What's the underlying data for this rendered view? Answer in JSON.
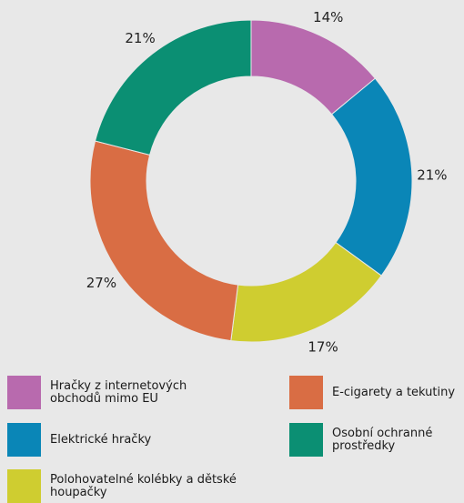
{
  "chart_data": {
    "type": "pie",
    "subtype": "donut",
    "slices": [
      {
        "label": "Hračky z internetových obchodů mimo EU",
        "value": 14,
        "value_label": "14%",
        "color": "#b86aae"
      },
      {
        "label": "Elektrické hračky",
        "value": 21,
        "value_label": "21%",
        "color": "#0a86b7"
      },
      {
        "label": "Polohovatelné kolébky a dětské houpačky",
        "value": 17,
        "value_label": "17%",
        "color": "#cfcd30"
      },
      {
        "label": "E-cigarety a tekutiny",
        "value": 27,
        "value_label": "27%",
        "color": "#d96d44"
      },
      {
        "label": "Osobní ochranné prostředky",
        "value": 21,
        "value_label": "21%",
        "color": "#0b8f73"
      }
    ],
    "legend_position": "bottom"
  }
}
